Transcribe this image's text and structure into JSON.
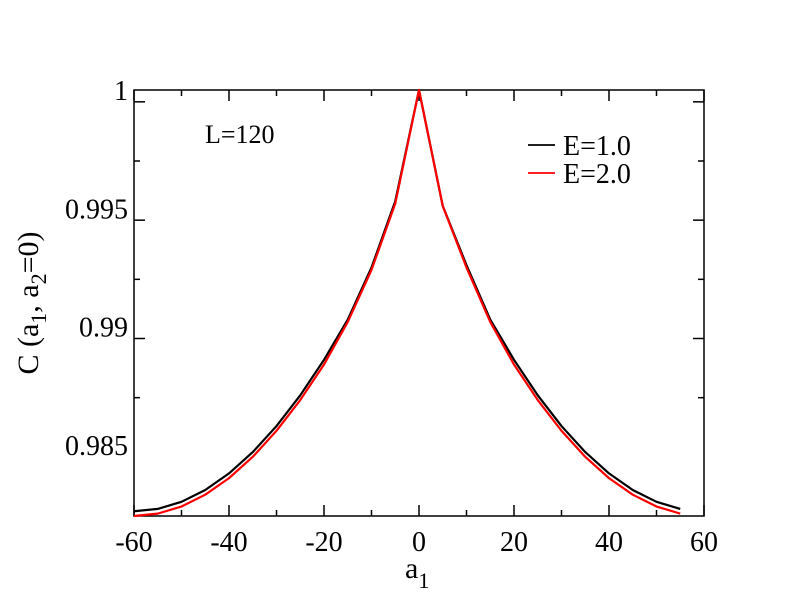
{
  "chart_data": {
    "type": "line",
    "title": "",
    "xlabel": {
      "main": "a",
      "sub": "1"
    },
    "ylabel": {
      "p1": "C (a",
      "s1": "1",
      "p2": ", a",
      "s2": "2",
      "p3": "=0)"
    },
    "annotation": "L=120",
    "xlim": [
      -60,
      60
    ],
    "ylim": [
      0.982,
      1.0
    ],
    "xticks": [
      -60,
      -40,
      -20,
      0,
      20,
      40,
      60
    ],
    "xtick_labels": [
      "-60",
      "-40",
      "-20",
      "0",
      "20",
      "40",
      "60"
    ],
    "yticks": [
      0.985,
      0.99,
      0.995,
      1.0
    ],
    "ytick_labels": [
      "0.985",
      "0.99",
      "0.995",
      "1"
    ],
    "legend_position": "top-right",
    "x": [
      -60,
      -55,
      -50,
      -45,
      -40,
      -35,
      -30,
      -25,
      -20,
      -15,
      -10,
      -5,
      0,
      5,
      10,
      15,
      20,
      25,
      30,
      35,
      40,
      45,
      50,
      55
    ],
    "series": [
      {
        "name": "E=1.0",
        "color": "#000000",
        "values": [
          0.9822,
          0.9823,
          0.9826,
          0.9831,
          0.9838,
          0.9847,
          0.9858,
          0.9871,
          0.9886,
          0.9903,
          0.9925,
          0.9953,
          1.0,
          0.9951,
          0.9926,
          0.9903,
          0.9886,
          0.9871,
          0.9858,
          0.9847,
          0.9838,
          0.9831,
          0.9826,
          0.9823
        ]
      },
      {
        "name": "E=2.0",
        "color": "#ff0000",
        "values": [
          0.982,
          0.9821,
          0.9824,
          0.9829,
          0.9836,
          0.9845,
          0.9856,
          0.9869,
          0.9884,
          0.9902,
          0.9924,
          0.9952,
          1.0,
          0.9951,
          0.9925,
          0.9902,
          0.9884,
          0.9869,
          0.9856,
          0.9845,
          0.9836,
          0.9829,
          0.9824,
          0.9821
        ]
      }
    ]
  }
}
